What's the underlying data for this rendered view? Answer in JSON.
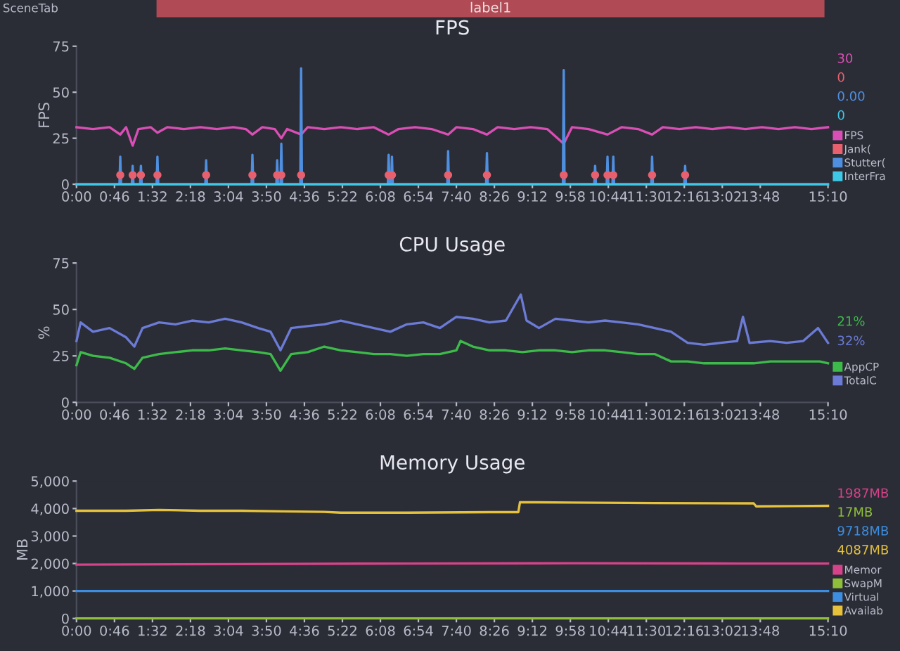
{
  "chart_data": [
    {
      "type": "line",
      "title": "FPS",
      "ylabel": "FPS",
      "xlim": [
        0,
        910
      ],
      "ylim": [
        0,
        75
      ],
      "yticks": [
        0,
        25,
        50,
        75
      ],
      "xticks": [
        {
          "value": 0,
          "label": "0:00"
        },
        {
          "value": 46,
          "label": "0:46"
        },
        {
          "value": 92,
          "label": "1:32"
        },
        {
          "value": 138,
          "label": "2:18"
        },
        {
          "value": 184,
          "label": "3:04"
        },
        {
          "value": 230,
          "label": "3:50"
        },
        {
          "value": 276,
          "label": "4:36"
        },
        {
          "value": 322,
          "label": "5:22"
        },
        {
          "value": 368,
          "label": "6:08"
        },
        {
          "value": 414,
          "label": "6:54"
        },
        {
          "value": 460,
          "label": "7:40"
        },
        {
          "value": 506,
          "label": "8:26"
        },
        {
          "value": 552,
          "label": "9:12"
        },
        {
          "value": 598,
          "label": "9:58"
        },
        {
          "value": 644,
          "label": "10:44"
        },
        {
          "value": 690,
          "label": "11:30"
        },
        {
          "value": 736,
          "label": "12:16"
        },
        {
          "value": 782,
          "label": "13:02"
        },
        {
          "value": 828,
          "label": "13:48"
        },
        {
          "value": 910,
          "label": "15:10"
        }
      ],
      "legend": "right",
      "grid": false,
      "series": [
        {
          "name": "FPS",
          "color": "#d94fb5",
          "x": [
            0,
            20,
            40,
            53,
            60,
            68,
            75,
            90,
            98,
            110,
            130,
            150,
            170,
            190,
            205,
            213,
            225,
            240,
            248,
            255,
            272,
            280,
            300,
            320,
            340,
            360,
            378,
            390,
            410,
            430,
            450,
            460,
            480,
            497,
            510,
            530,
            550,
            570,
            590,
            600,
            620,
            643,
            660,
            680,
            697,
            710,
            730,
            750,
            770,
            790,
            810,
            830,
            850,
            870,
            890,
            910
          ],
          "values": [
            31,
            30,
            31,
            27,
            31,
            21,
            30,
            31,
            28,
            31,
            30,
            31,
            30,
            31,
            30,
            27,
            31,
            30,
            25,
            30,
            27,
            31,
            30,
            31,
            30,
            31,
            27,
            30,
            31,
            30,
            27,
            31,
            30,
            27,
            31,
            30,
            31,
            30,
            22,
            31,
            30,
            27,
            31,
            30,
            27,
            31,
            30,
            31,
            30,
            31,
            30,
            31,
            30,
            31,
            30,
            31
          ]
        },
        {
          "name": "Jank(",
          "type": "scatter",
          "color": "#e8606e",
          "x": [
            53,
            68,
            78,
            98,
            157,
            213,
            243,
            248,
            272,
            378,
            382,
            450,
            497,
            590,
            628,
            643,
            650,
            697,
            737
          ],
          "values": [
            5,
            5,
            5,
            5,
            5,
            5,
            5,
            5,
            5,
            5,
            5,
            5,
            5,
            5,
            5,
            5,
            5,
            5,
            5
          ]
        },
        {
          "name": "Stutter(",
          "color": "#4f8fe0",
          "x": [
            0,
            52,
            53,
            54,
            67,
            68,
            69,
            77,
            78,
            79,
            97,
            98,
            99,
            156,
            157,
            158,
            212,
            213,
            214,
            242,
            243,
            244,
            247,
            248,
            249,
            271,
            272,
            273,
            377,
            378,
            379,
            381,
            382,
            383,
            449,
            450,
            451,
            496,
            497,
            498,
            589,
            590,
            591,
            627,
            628,
            629,
            642,
            643,
            644,
            649,
            650,
            651,
            696,
            697,
            698,
            736,
            737,
            738,
            910
          ],
          "values": [
            0,
            0,
            15,
            0,
            0,
            10,
            0,
            0,
            10,
            0,
            0,
            15,
            0,
            0,
            13,
            0,
            0,
            16,
            0,
            0,
            13,
            0,
            0,
            22,
            0,
            0,
            63,
            0,
            0,
            16,
            0,
            0,
            15,
            0,
            0,
            18,
            0,
            0,
            17,
            0,
            0,
            62,
            0,
            0,
            10,
            0,
            0,
            15,
            0,
            0,
            15,
            0,
            0,
            15,
            0,
            0,
            10,
            0,
            0
          ]
        },
        {
          "name": "InterFra",
          "color": "#3ec8e6",
          "x": [
            0,
            910
          ],
          "values": [
            0,
            0
          ]
        }
      ],
      "annotations": [
        "30",
        "0",
        "0.00",
        "0",
        "SceneTab",
        "label1"
      ]
    },
    {
      "type": "line",
      "title": "CPU Usage",
      "ylabel": "%",
      "xlim": [
        0,
        910
      ],
      "ylim": [
        0,
        75
      ],
      "yticks": [
        0,
        25,
        50,
        75
      ],
      "xticks": [
        {
          "value": 0,
          "label": "0:00"
        },
        {
          "value": 46,
          "label": "0:46"
        },
        {
          "value": 92,
          "label": "1:32"
        },
        {
          "value": 138,
          "label": "2:18"
        },
        {
          "value": 184,
          "label": "3:04"
        },
        {
          "value": 230,
          "label": "3:50"
        },
        {
          "value": 276,
          "label": "4:36"
        },
        {
          "value": 322,
          "label": "5:22"
        },
        {
          "value": 368,
          "label": "6:08"
        },
        {
          "value": 414,
          "label": "6:54"
        },
        {
          "value": 460,
          "label": "7:40"
        },
        {
          "value": 506,
          "label": "8:26"
        },
        {
          "value": 552,
          "label": "9:12"
        },
        {
          "value": 598,
          "label": "9:58"
        },
        {
          "value": 644,
          "label": "10:44"
        },
        {
          "value": 690,
          "label": "11:30"
        },
        {
          "value": 736,
          "label": "12:16"
        },
        {
          "value": 782,
          "label": "13:02"
        },
        {
          "value": 828,
          "label": "13:48"
        },
        {
          "value": 910,
          "label": "15:10"
        }
      ],
      "legend": "right",
      "grid": false,
      "series": [
        {
          "name": "AppCP",
          "color": "#3dbb4a",
          "x": [
            0,
            5,
            20,
            40,
            60,
            70,
            80,
            100,
            120,
            140,
            160,
            180,
            200,
            220,
            235,
            247,
            260,
            280,
            300,
            320,
            340,
            360,
            380,
            400,
            420,
            440,
            460,
            465,
            480,
            500,
            520,
            540,
            560,
            580,
            600,
            620,
            640,
            660,
            680,
            700,
            720,
            740,
            760,
            780,
            800,
            820,
            840,
            860,
            880,
            900,
            910
          ],
          "values": [
            20,
            27,
            25,
            24,
            21,
            18,
            24,
            26,
            27,
            28,
            28,
            29,
            28,
            27,
            26,
            17,
            26,
            27,
            30,
            28,
            27,
            26,
            26,
            25,
            26,
            26,
            28,
            33,
            30,
            28,
            28,
            27,
            28,
            28,
            27,
            28,
            28,
            27,
            26,
            26,
            22,
            22,
            21,
            21,
            21,
            21,
            22,
            22,
            22,
            22,
            21
          ]
        },
        {
          "name": "TotalC",
          "color": "#6b7bd6",
          "x": [
            0,
            5,
            20,
            40,
            60,
            70,
            80,
            100,
            120,
            140,
            160,
            180,
            200,
            220,
            235,
            247,
            260,
            280,
            300,
            320,
            340,
            360,
            380,
            400,
            420,
            440,
            460,
            480,
            500,
            520,
            538,
            545,
            560,
            580,
            600,
            620,
            640,
            660,
            680,
            700,
            720,
            740,
            760,
            780,
            800,
            807,
            815,
            840,
            860,
            880,
            898,
            910
          ],
          "values": [
            33,
            43,
            38,
            40,
            35,
            30,
            40,
            43,
            42,
            44,
            43,
            45,
            43,
            40,
            38,
            28,
            40,
            41,
            42,
            44,
            42,
            40,
            38,
            42,
            43,
            40,
            46,
            45,
            43,
            44,
            58,
            44,
            40,
            45,
            44,
            43,
            44,
            43,
            42,
            40,
            38,
            32,
            31,
            32,
            33,
            46,
            32,
            33,
            32,
            33,
            40,
            32
          ]
        }
      ],
      "annotations": [
        "21%",
        "32%"
      ]
    },
    {
      "type": "line",
      "title": "Memory Usage",
      "ylabel": "MB",
      "xlim": [
        0,
        910
      ],
      "ylim": [
        0,
        5000
      ],
      "yticks": [
        0,
        {
          "value": 1000,
          "label": "1,000"
        },
        {
          "value": 2000,
          "label": "2,000"
        },
        {
          "value": 3000,
          "label": "3,000"
        },
        {
          "value": 4000,
          "label": "4,000"
        },
        {
          "value": 5000,
          "label": "5,000"
        }
      ],
      "xticks": [
        {
          "value": 0,
          "label": "0:00"
        },
        {
          "value": 46,
          "label": "0:46"
        },
        {
          "value": 92,
          "label": "1:32"
        },
        {
          "value": 138,
          "label": "2:18"
        },
        {
          "value": 184,
          "label": "3:04"
        },
        {
          "value": 230,
          "label": "3:50"
        },
        {
          "value": 276,
          "label": "4:36"
        },
        {
          "value": 322,
          "label": "5:22"
        },
        {
          "value": 368,
          "label": "6:08"
        },
        {
          "value": 414,
          "label": "6:54"
        },
        {
          "value": 460,
          "label": "7:40"
        },
        {
          "value": 506,
          "label": "8:26"
        },
        {
          "value": 552,
          "label": "9:12"
        },
        {
          "value": 598,
          "label": "9:58"
        },
        {
          "value": 644,
          "label": "10:44"
        },
        {
          "value": 690,
          "label": "11:30"
        },
        {
          "value": 736,
          "label": "12:16"
        },
        {
          "value": 782,
          "label": "13:02"
        },
        {
          "value": 828,
          "label": "13:48"
        },
        {
          "value": 910,
          "label": "15:10"
        }
      ],
      "legend": "right",
      "grid": false,
      "series": [
        {
          "name": "Memor",
          "color": "#d6438a",
          "x": [
            0,
            200,
            400,
            600,
            800,
            910
          ],
          "values": [
            1960,
            1980,
            2000,
            2010,
            2000,
            2000
          ]
        },
        {
          "name": "SwapM",
          "color": "#8fbf3a",
          "x": [
            0,
            910
          ],
          "values": [
            0,
            0
          ]
        },
        {
          "name": "Virtual",
          "color": "#3d8ee0",
          "x": [
            0,
            910
          ],
          "values": [
            1000,
            1000
          ]
        },
        {
          "name": "Availab",
          "color": "#e6c23c",
          "x": [
            0,
            60,
            100,
            150,
            200,
            250,
            300,
            320,
            400,
            500,
            535,
            537,
            600,
            700,
            820,
            823,
            870,
            910
          ],
          "values": [
            3920,
            3920,
            3950,
            3920,
            3920,
            3900,
            3880,
            3850,
            3850,
            3870,
            3870,
            4230,
            4220,
            4200,
            4190,
            4080,
            4090,
            4100
          ]
        }
      ],
      "annotations": [
        "1987MB",
        "17MB",
        "9718MB",
        "4087MB"
      ]
    }
  ]
}
